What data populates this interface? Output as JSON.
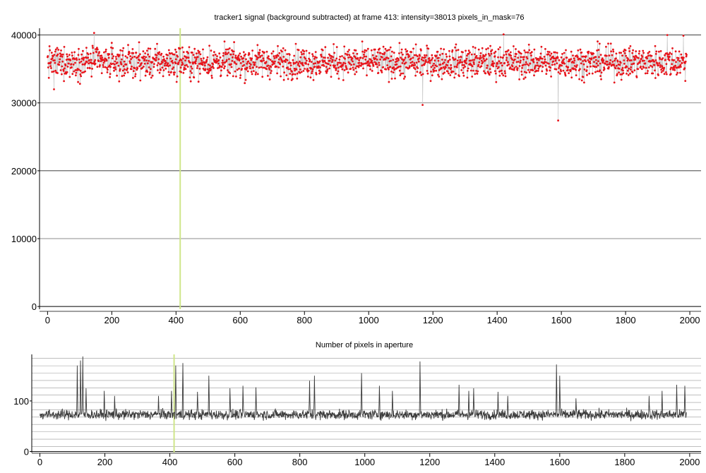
{
  "chart_data": [
    {
      "type": "scatter",
      "title": "tracker1 signal (background subtracted) at frame 413: intensity=38013 pixels_in_mask=76",
      "xlabel": "",
      "ylabel": "",
      "xlim": [
        -25,
        2035
      ],
      "ylim": [
        -400,
        41000
      ],
      "x_ticks": [
        0,
        200,
        400,
        600,
        800,
        1000,
        1200,
        1400,
        1600,
        1800,
        2000
      ],
      "y_ticks": [
        0,
        10000,
        20000,
        30000,
        40000
      ],
      "grid": "horizontal at y ticks",
      "marker_color": "#e8141b",
      "line_color": "#c8c8c8",
      "highlight_frame": 413,
      "highlight_color": "#cfe68a",
      "series": [
        {
          "x_range": [
            0,
            1990
          ],
          "baseline": 36000,
          "noise_amplitude": 1400,
          "samples": 1991,
          "notable_points": [
            {
              "x": 20,
              "y": 32000
            },
            {
              "x": 145,
              "y": 40300
            },
            {
              "x": 413,
              "y": 38013
            },
            {
              "x": 1168,
              "y": 29700
            },
            {
              "x": 1590,
              "y": 27400
            },
            {
              "x": 1420,
              "y": 40100
            },
            {
              "x": 1930,
              "y": 40000
            },
            {
              "x": 1980,
              "y": 39900
            }
          ]
        }
      ]
    },
    {
      "type": "line",
      "title": "Number of pixels in aperture",
      "xlabel": "",
      "ylabel": "",
      "xlim": [
        -25,
        2035
      ],
      "ylim": [
        -2,
        192
      ],
      "x_ticks": [
        0,
        200,
        400,
        600,
        800,
        1000,
        1200,
        1400,
        1600,
        1800,
        2000
      ],
      "y_ticks": [
        0,
        100
      ],
      "grid": "horizontal every 20",
      "line_color": "#3a3a3a",
      "highlight_frame": 413,
      "highlight_color": "#cfe68a",
      "series": [
        {
          "x_range": [
            0,
            1990
          ],
          "baseline": 73,
          "noise_amplitude": 8,
          "samples": 1991,
          "peaks": [
            {
              "x": 115,
              "y": 170
            },
            {
              "x": 125,
              "y": 180
            },
            {
              "x": 132,
              "y": 188
            },
            {
              "x": 142,
              "y": 125
            },
            {
              "x": 198,
              "y": 120
            },
            {
              "x": 230,
              "y": 110
            },
            {
              "x": 365,
              "y": 110
            },
            {
              "x": 405,
              "y": 120
            },
            {
              "x": 418,
              "y": 170
            },
            {
              "x": 440,
              "y": 175
            },
            {
              "x": 485,
              "y": 118
            },
            {
              "x": 520,
              "y": 150
            },
            {
              "x": 585,
              "y": 125
            },
            {
              "x": 625,
              "y": 130
            },
            {
              "x": 665,
              "y": 127
            },
            {
              "x": 830,
              "y": 140
            },
            {
              "x": 845,
              "y": 150
            },
            {
              "x": 990,
              "y": 155
            },
            {
              "x": 1045,
              "y": 130
            },
            {
              "x": 1085,
              "y": 120
            },
            {
              "x": 1170,
              "y": 178
            },
            {
              "x": 1290,
              "y": 132
            },
            {
              "x": 1320,
              "y": 120
            },
            {
              "x": 1335,
              "y": 125
            },
            {
              "x": 1410,
              "y": 118
            },
            {
              "x": 1440,
              "y": 110
            },
            {
              "x": 1590,
              "y": 172
            },
            {
              "x": 1600,
              "y": 150
            },
            {
              "x": 1650,
              "y": 105
            },
            {
              "x": 1875,
              "y": 110
            },
            {
              "x": 1915,
              "y": 120
            },
            {
              "x": 1960,
              "y": 132
            },
            {
              "x": 1985,
              "y": 130
            }
          ]
        }
      ]
    }
  ]
}
